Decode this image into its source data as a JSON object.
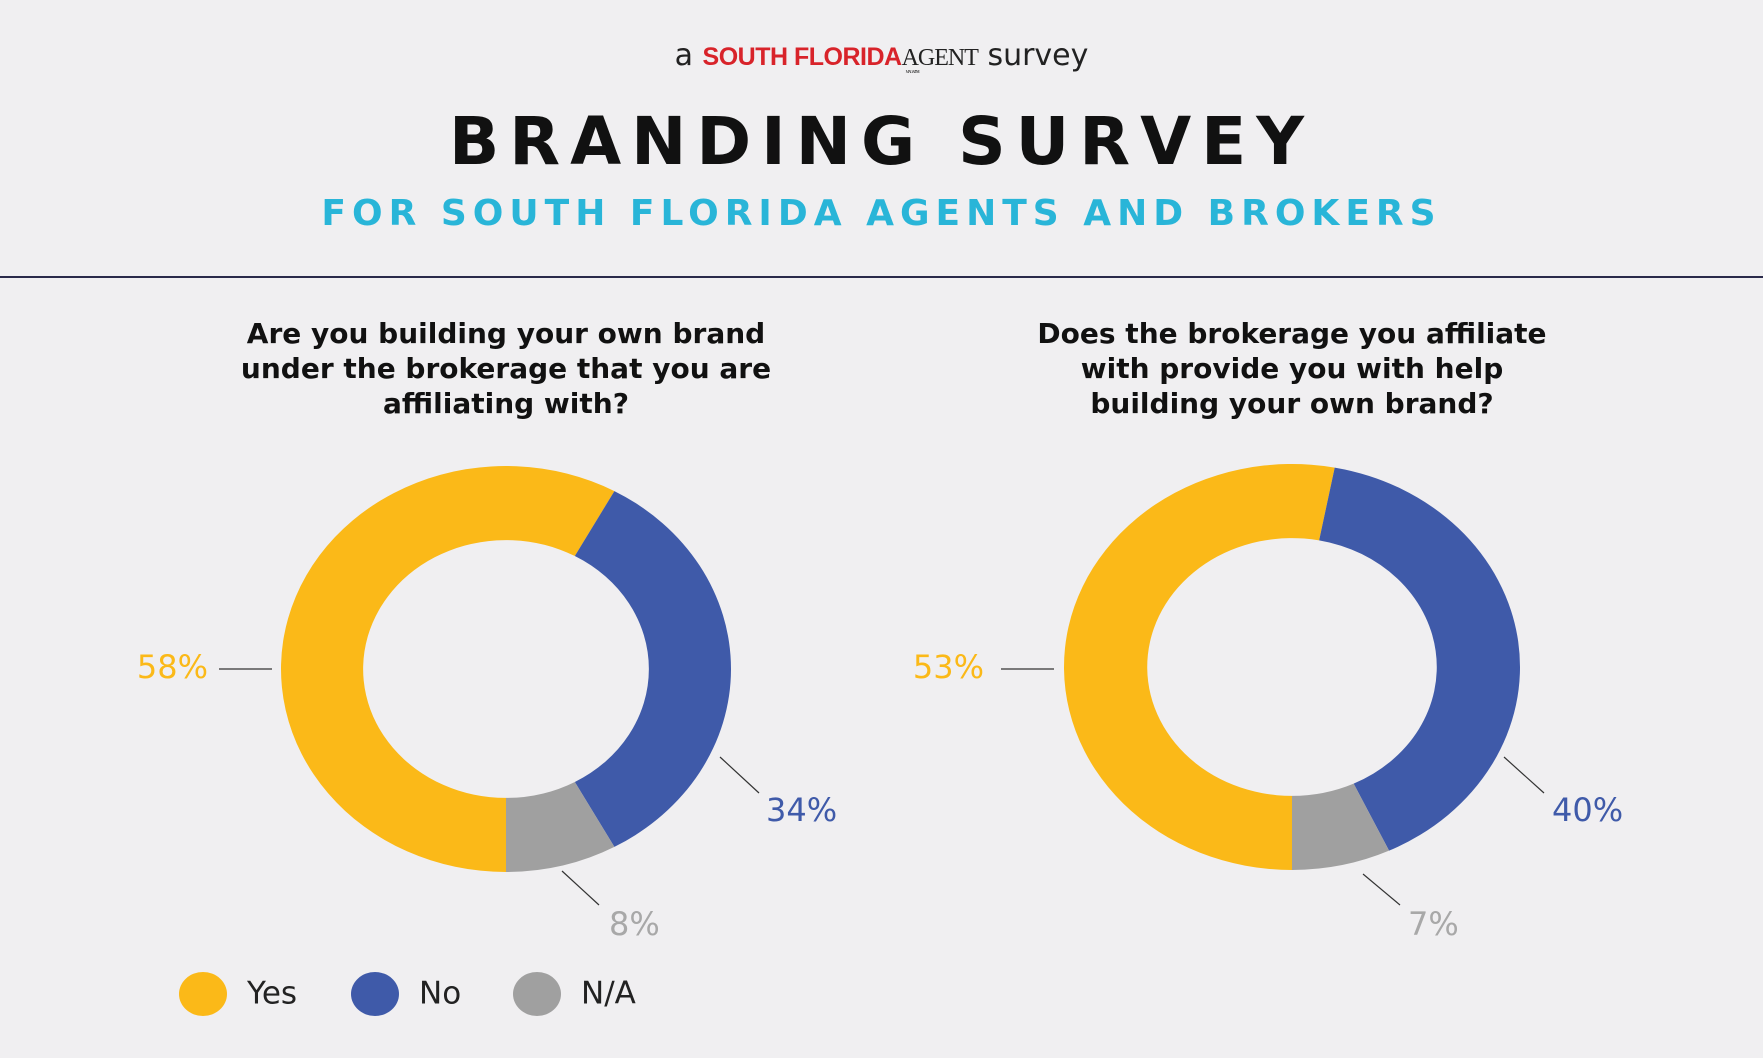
{
  "header": {
    "prefix": "a",
    "brand": "SOUTH FLORIDA",
    "brand2": "AGENT",
    "brand_sub": "MAGAZINE",
    "suffix": "survey"
  },
  "title": "BRANDING SURVEY",
  "subtitle": "FOR SOUTH FLORIDA AGENTS AND BROKERS",
  "legend": {
    "labels": [
      "Yes",
      "No",
      "N/A"
    ],
    "colors": [
      "#fbb918",
      "#3f5aa9",
      "#a0a0a0"
    ]
  },
  "chart_data": [
    {
      "type": "pie",
      "title": "Are you building your own brand under the brokerage that you are affiliating with?",
      "values": [
        58,
        34,
        8
      ],
      "value_labels": [
        "58%",
        "34%",
        "8%"
      ]
    },
    {
      "type": "pie",
      "title": "Does the brokerage you affiliate with provide you with help building your own brand?",
      "values": [
        53,
        40,
        7
      ],
      "value_labels": [
        "53%",
        "40%",
        "7%"
      ]
    }
  ]
}
